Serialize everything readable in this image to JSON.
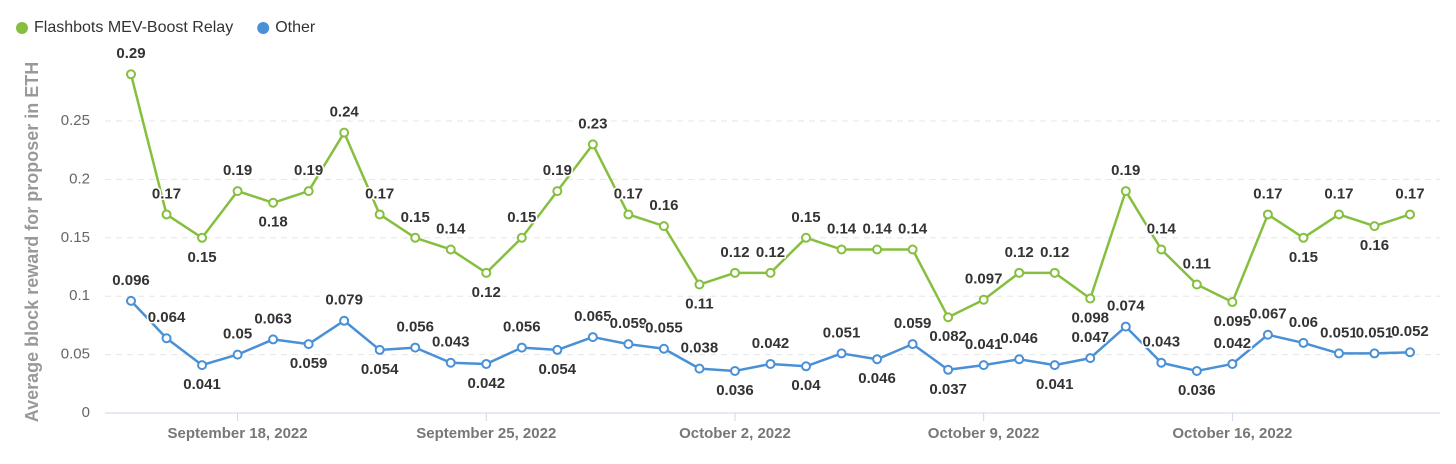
{
  "chart_data": {
    "type": "line",
    "y_label": "Average block reward for proposer in ETH",
    "x": [
      "2022-09-15",
      "2022-09-16",
      "2022-09-17",
      "2022-09-18",
      "2022-09-19",
      "2022-09-20",
      "2022-09-21",
      "2022-09-22",
      "2022-09-23",
      "2022-09-24",
      "2022-09-25",
      "2022-09-26",
      "2022-09-27",
      "2022-09-28",
      "2022-09-29",
      "2022-09-30",
      "2022-10-01",
      "2022-10-02",
      "2022-10-03",
      "2022-10-04",
      "2022-10-05",
      "2022-10-06",
      "2022-10-07",
      "2022-10-08",
      "2022-10-09",
      "2022-10-10",
      "2022-10-11",
      "2022-10-12",
      "2022-10-13",
      "2022-10-14",
      "2022-10-15",
      "2022-10-16",
      "2022-10-17",
      "2022-10-18",
      "2022-10-19",
      "2022-10-20",
      "2022-10-21"
    ],
    "xticks": [
      {
        "value": "2022-09-18",
        "label": "September 18, 2022"
      },
      {
        "value": "2022-09-25",
        "label": "September 25, 2022"
      },
      {
        "value": "2022-10-02",
        "label": "October 2, 2022"
      },
      {
        "value": "2022-10-09",
        "label": "October 9, 2022"
      },
      {
        "value": "2022-10-16",
        "label": "October 16, 2022"
      }
    ],
    "ylim": [
      0,
      0.3
    ],
    "yticks": [
      0,
      0.05,
      0.1,
      0.15,
      0.2,
      0.25
    ],
    "grid": true,
    "legend": "top-left",
    "series": [
      {
        "name": "Flashbots MEV-Boost Relay",
        "color": "#86bf3f",
        "values": [
          0.29,
          0.17,
          0.15,
          0.19,
          0.18,
          0.19,
          0.24,
          0.17,
          0.15,
          0.14,
          0.12,
          0.15,
          0.19,
          0.23,
          0.17,
          0.16,
          0.11,
          0.12,
          0.12,
          0.15,
          0.14,
          0.14,
          0.14,
          0.082,
          0.097,
          0.12,
          0.12,
          0.098,
          0.19,
          0.14,
          0.11,
          0.095,
          0.17,
          0.15,
          0.17,
          0.16,
          0.17
        ]
      },
      {
        "name": "Other",
        "color": "#4a90d6",
        "values": [
          0.096,
          0.064,
          0.041,
          0.05,
          0.063,
          0.059,
          0.079,
          0.054,
          0.056,
          0.043,
          0.042,
          0.056,
          0.054,
          0.065,
          0.059,
          0.055,
          0.038,
          0.036,
          0.042,
          0.04,
          0.051,
          0.046,
          0.059,
          0.037,
          0.041,
          0.046,
          0.041,
          0.047,
          0.074,
          0.043,
          0.036,
          0.042,
          0.067,
          0.06,
          0.051,
          0.051,
          0.052
        ]
      }
    ]
  }
}
